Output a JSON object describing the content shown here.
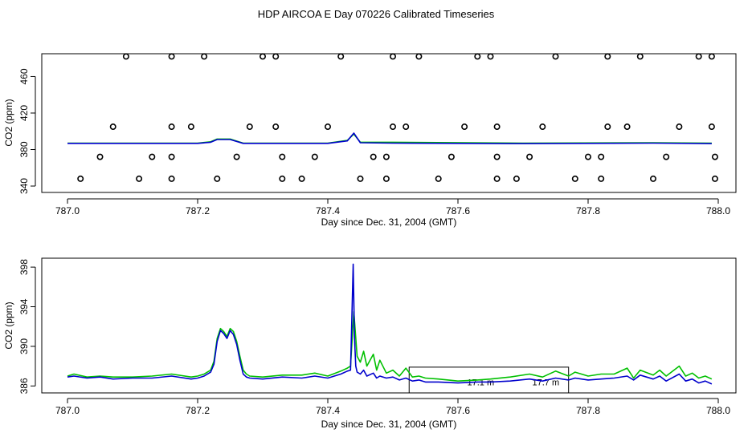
{
  "title": "HDP AIRCOA E  Day 070226  Calibrated Timeseries",
  "colors": {
    "green": "#00c000",
    "blue": "#0000cc",
    "axis": "#000000"
  },
  "chart_data": [
    {
      "type": "line",
      "xlabel": "Day since Dec. 31, 2004 (GMT)",
      "ylabel": "CO2 (ppm)",
      "xlim": [
        787.0,
        788.0
      ],
      "ylim": [
        333.0,
        485.0
      ],
      "xticks": [
        "787.0",
        "787.2",
        "787.4",
        "787.6",
        "787.8",
        "788.0"
      ],
      "yticks": [
        "340",
        "380",
        "420",
        "460"
      ],
      "points": {
        "y_levels": [
          482,
          405,
          372,
          348
        ],
        "x_by_level": [
          [
            787.09,
            787.16,
            787.21,
            787.3,
            787.32,
            787.42,
            787.5,
            787.54,
            787.63,
            787.65,
            787.75,
            787.83,
            787.88,
            787.97,
            787.99
          ],
          [
            787.07,
            787.16,
            787.19,
            787.28,
            787.32,
            787.4,
            787.5,
            787.52,
            787.61,
            787.66,
            787.73,
            787.83,
            787.86,
            787.94,
            787.99
          ],
          [
            787.05,
            787.13,
            787.16,
            787.26,
            787.33,
            787.38,
            787.47,
            787.49,
            787.59,
            787.66,
            787.71,
            787.8,
            787.82,
            787.92,
            787.995
          ],
          [
            787.02,
            787.11,
            787.16,
            787.23,
            787.33,
            787.36,
            787.45,
            787.49,
            787.57,
            787.66,
            787.69,
            787.78,
            787.82,
            787.9,
            787.995
          ]
        ]
      },
      "series": [
        {
          "color": "#00c000",
          "x": [
            787.0,
            787.2,
            787.22,
            787.23,
            787.25,
            787.27,
            787.4,
            787.43,
            787.44,
            787.45,
            787.5,
            787.7,
            787.9,
            787.99
          ],
          "values": [
            387,
            387,
            388.5,
            391.5,
            391.5,
            387,
            387,
            390,
            397,
            388,
            388,
            387,
            387.5,
            387
          ]
        },
        {
          "color": "#0000cc",
          "x": [
            787.0,
            787.2,
            787.22,
            787.23,
            787.25,
            787.27,
            787.4,
            787.43,
            787.44,
            787.45,
            787.5,
            787.7,
            787.9,
            787.99
          ],
          "values": [
            386.8,
            386.8,
            388,
            391,
            391,
            386.8,
            386.8,
            389.5,
            398,
            387.5,
            387,
            386.5,
            387,
            386.5
          ]
        }
      ]
    },
    {
      "type": "line",
      "xlabel": "Day since Dec. 31, 2004 (GMT)",
      "ylabel": "CO2 (ppm)",
      "xlim": [
        787.0,
        788.0
      ],
      "ylim": [
        385.3,
        398.9
      ],
      "xticks": [
        "787.0",
        "787.2",
        "787.4",
        "787.6",
        "787.8",
        "788.0"
      ],
      "yticks": [
        "386",
        "390",
        "394",
        "398"
      ],
      "annotation": {
        "labels": [
          "17.1 m",
          "17.7 m"
        ],
        "x_pos": [
          787.635,
          787.735
        ],
        "y": 386.4,
        "box_x": [
          787.525,
          787.77
        ],
        "box_y": [
          385.3,
          387.9
        ]
      },
      "series": [
        {
          "color": "#00c000",
          "x": [
            787.0,
            787.01,
            787.03,
            787.05,
            787.07,
            787.1,
            787.13,
            787.16,
            787.19,
            787.2,
            787.21,
            787.22,
            787.225,
            787.23,
            787.235,
            787.24,
            787.245,
            787.25,
            787.255,
            787.26,
            787.265,
            787.27,
            787.275,
            787.28,
            787.3,
            787.33,
            787.36,
            787.38,
            787.4,
            787.42,
            787.43,
            787.435,
            787.44,
            787.445,
            787.45,
            787.455,
            787.46,
            787.47,
            787.475,
            787.48,
            787.49,
            787.5,
            787.51,
            787.52,
            787.53,
            787.54,
            787.55,
            787.57,
            787.6,
            787.63,
            787.65,
            787.68,
            787.71,
            787.73,
            787.75,
            787.77,
            787.78,
            787.8,
            787.82,
            787.84,
            787.86,
            787.87,
            787.88,
            787.9,
            787.91,
            787.92,
            787.94,
            787.95,
            787.96,
            787.97,
            787.98,
            787.99
          ],
          "values": [
            387.0,
            387.2,
            386.9,
            387.0,
            386.9,
            386.9,
            387.0,
            387.2,
            386.9,
            387.0,
            387.2,
            387.6,
            388.5,
            390.8,
            391.8,
            391.5,
            391.0,
            391.8,
            391.5,
            390.5,
            389.0,
            387.6,
            387.2,
            387.0,
            386.9,
            387.1,
            387.1,
            387.3,
            387.0,
            387.5,
            387.8,
            388.0,
            393.5,
            389.0,
            388.4,
            389.5,
            388.0,
            389.2,
            387.6,
            388.6,
            387.3,
            387.6,
            387.0,
            387.8,
            386.9,
            387.0,
            386.8,
            386.7,
            386.5,
            386.6,
            386.7,
            386.9,
            387.2,
            386.9,
            387.5,
            387.0,
            387.4,
            387.0,
            387.2,
            387.2,
            387.8,
            386.8,
            387.6,
            387.1,
            387.6,
            387.0,
            388.0,
            387.0,
            387.3,
            386.8,
            387.0,
            386.7
          ]
        },
        {
          "color": "#0000cc",
          "x": [
            787.0,
            787.01,
            787.03,
            787.05,
            787.07,
            787.1,
            787.13,
            787.16,
            787.19,
            787.2,
            787.21,
            787.22,
            787.225,
            787.23,
            787.235,
            787.24,
            787.245,
            787.25,
            787.255,
            787.26,
            787.265,
            787.27,
            787.275,
            787.28,
            787.3,
            787.33,
            787.36,
            787.38,
            787.4,
            787.42,
            787.43,
            787.435,
            787.437,
            787.439,
            787.441,
            787.443,
            787.445,
            787.45,
            787.455,
            787.46,
            787.47,
            787.475,
            787.48,
            787.49,
            787.5,
            787.51,
            787.52,
            787.53,
            787.54,
            787.55,
            787.57,
            787.6,
            787.63,
            787.65,
            787.68,
            787.71,
            787.73,
            787.75,
            787.77,
            787.78,
            787.8,
            787.82,
            787.84,
            787.86,
            787.87,
            787.88,
            787.9,
            787.91,
            787.92,
            787.94,
            787.95,
            787.96,
            787.97,
            787.98,
            787.99
          ],
          "values": [
            386.9,
            387.0,
            386.8,
            386.9,
            386.7,
            386.8,
            386.8,
            387.0,
            386.7,
            386.8,
            387.0,
            387.4,
            388.2,
            390.5,
            391.6,
            391.3,
            390.8,
            391.6,
            391.2,
            390.2,
            388.6,
            387.2,
            386.9,
            386.8,
            386.7,
            386.9,
            386.8,
            387.0,
            386.8,
            387.2,
            387.5,
            387.6,
            393.0,
            398.3,
            391.0,
            388.0,
            387.4,
            387.2,
            387.6,
            387.0,
            387.3,
            386.8,
            387.0,
            386.8,
            386.9,
            386.6,
            386.8,
            386.5,
            386.6,
            386.4,
            386.4,
            386.3,
            386.4,
            386.4,
            386.5,
            386.7,
            386.5,
            386.8,
            386.6,
            386.8,
            386.6,
            386.7,
            386.8,
            387.0,
            386.6,
            387.1,
            386.7,
            387.0,
            386.5,
            387.2,
            386.5,
            386.7,
            386.3,
            386.5,
            386.2
          ]
        }
      ]
    }
  ]
}
